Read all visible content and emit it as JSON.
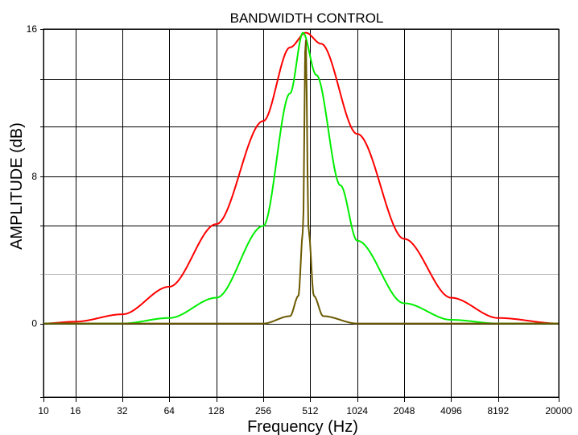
{
  "chart_data": {
    "type": "line",
    "title": "BANDWIDTH CONTROL",
    "xlabel": "Frequency (Hz)",
    "ylabel": "AMPLITUDE (dB)",
    "x_scale": "log2",
    "xlim": [
      10,
      20000
    ],
    "ylim": [
      -4,
      16
    ],
    "x_tick_values": [
      10,
      16,
      32,
      64,
      128,
      256,
      512,
      1024,
      2048,
      4096,
      8192,
      20000
    ],
    "x_tick_labels": [
      "10",
      "16",
      "32",
      "64",
      "128",
      "256",
      "512",
      "1024",
      "2048",
      "4096",
      "8192",
      "20000"
    ],
    "y_tick_values": [
      0,
      8,
      16
    ],
    "y_tick_labels": [
      "0",
      "8",
      "16"
    ],
    "y_grid_values": [
      -4,
      0,
      2.7,
      5.3,
      8,
      10.7,
      13.3,
      16
    ],
    "grid": true,
    "center_frequency": 480,
    "series": [
      {
        "color": "#ff0000",
        "points": [
          [
            10,
            0
          ],
          [
            16,
            0.1
          ],
          [
            32,
            0.5
          ],
          [
            64,
            2
          ],
          [
            128,
            5.4
          ],
          [
            256,
            11
          ],
          [
            380,
            15
          ],
          [
            480,
            15.8
          ],
          [
            600,
            15.2
          ],
          [
            1024,
            10.3
          ],
          [
            2048,
            4.6
          ],
          [
            4096,
            1.4
          ],
          [
            8192,
            0.3
          ],
          [
            20000,
            0
          ]
        ]
      },
      {
        "color": "#00ee00",
        "points": [
          [
            10,
            0
          ],
          [
            32,
            0
          ],
          [
            64,
            0.3
          ],
          [
            128,
            1.4
          ],
          [
            256,
            5.3
          ],
          [
            380,
            12.5
          ],
          [
            460,
            15.8
          ],
          [
            560,
            13.5
          ],
          [
            800,
            7.5
          ],
          [
            1024,
            4.5
          ],
          [
            2048,
            1.1
          ],
          [
            4096,
            0.2
          ],
          [
            8192,
            0
          ],
          [
            20000,
            0
          ]
        ]
      },
      {
        "color": "#6b5a00",
        "points": [
          [
            10,
            0
          ],
          [
            256,
            0
          ],
          [
            380,
            0.4
          ],
          [
            430,
            1.5
          ],
          [
            460,
            5
          ],
          [
            478,
            15.7
          ],
          [
            500,
            5
          ],
          [
            540,
            1.5
          ],
          [
            620,
            0.4
          ],
          [
            1024,
            0
          ],
          [
            20000,
            0
          ]
        ]
      }
    ]
  }
}
